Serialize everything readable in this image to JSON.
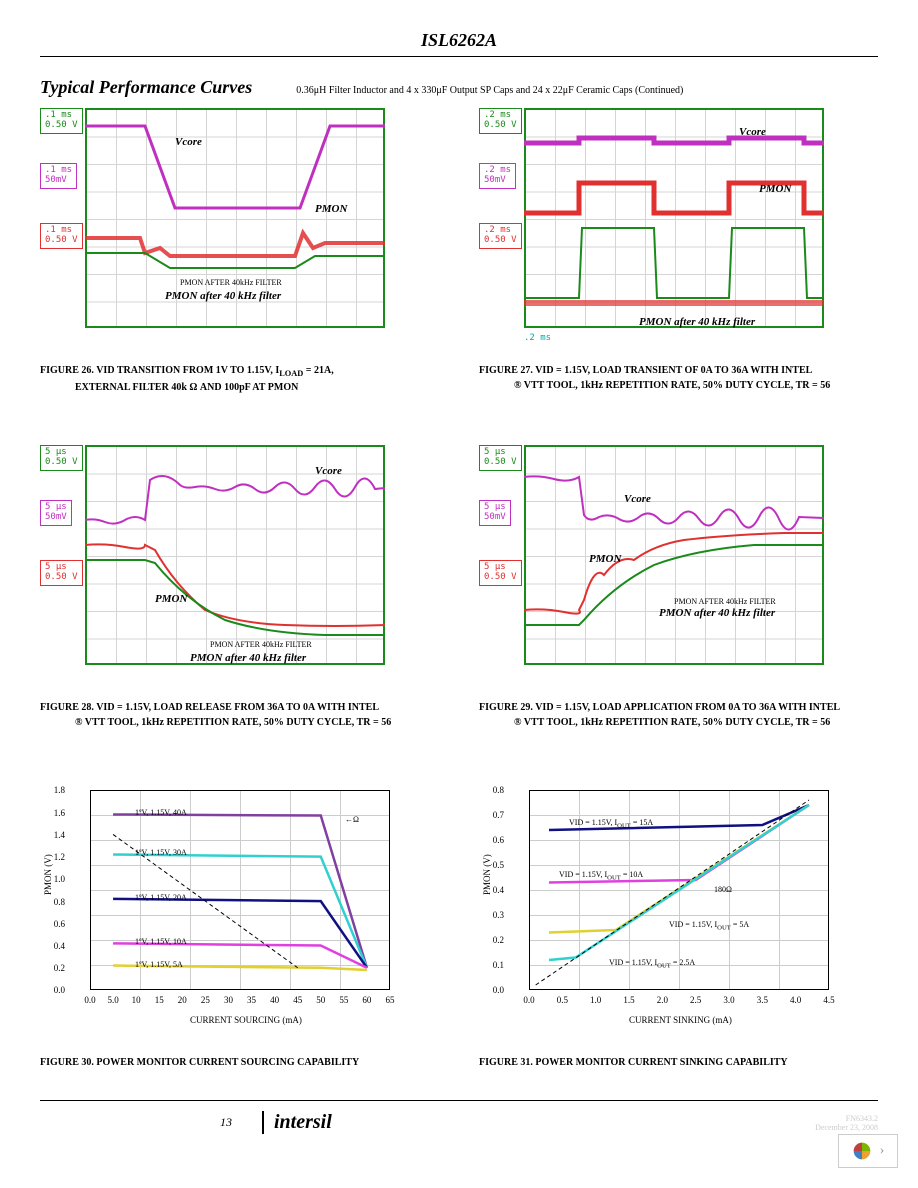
{
  "page_title": "ISL6262A",
  "section_title": "Typical Performance Curves",
  "section_subtitle": "0.36μH Filter Inductor and 4 x 330μF Output SP Caps and 24 x 22μF Ceramic Caps (Continued)",
  "page_number": "13",
  "footer_logo": "intersil",
  "footer_doc": "FN6343.2",
  "footer_date": "December 23, 2008",
  "scope_channels": {
    "ch3": {
      "color": "#1a8a1a",
      "label_color": "#1a8a1a"
    },
    "ch4": {
      "color": "#c030c0",
      "label_color": "#c030c0"
    },
    "ch1": {
      "color": "#e03030",
      "label_color": "#e03030"
    },
    "timebase_color": "#00aaaa"
  },
  "fig26": {
    "ch3": {
      "timebase": ".1 ms",
      "scale": "0.50 V"
    },
    "ch4": {
      "timebase": ".1 ms",
      "scale": "50mV"
    },
    "ch1": {
      "timebase": ".1 ms",
      "scale": "0.50 V"
    },
    "annotations": {
      "vcore": "Vcore",
      "pmon": "PMON",
      "pmon_raw": "PMON AFTER 40kHz FILTER",
      "pmon_filt": "PMON after 40 kHz filter"
    },
    "caption": "FIGURE 26. VID TRANSITION FROM 1V TO 1.15V, I",
    "caption2": "LOAD",
    "caption3": "= 21A,",
    "caption4": "EXTERNAL FILTER 40k",
    "caption5": "Ω AND 100pF AT PMON"
  },
  "fig27": {
    "ch3": {
      "timebase": ".2 ms",
      "scale": "0.50 V"
    },
    "ch4": {
      "timebase": ".2 ms",
      "scale": "50mV"
    },
    "ch1": {
      "timebase": ".2 ms",
      "scale": "0.50 V"
    },
    "timebase": ".2 ms",
    "annotations": {
      "vcore": "Vcore",
      "pmon": "PMON",
      "pmon_filt": "PMON after 40 kHz filter"
    },
    "caption": "FIGURE 27. VID = 1.15V, LOAD TRANSIENT OF 0A TO 36A WITH INTEL",
    "caption2": "® VTT TOOL, 1kHz REPETITION RATE, 50% DUTY CYCLE, TR = 56"
  },
  "fig28": {
    "ch3": {
      "timebase": "5 μs",
      "scale": "0.50 V"
    },
    "ch4": {
      "timebase": "5 μs",
      "scale": "50mV"
    },
    "ch1": {
      "timebase": "5 μs",
      "scale": "0.50 V"
    },
    "annotations": {
      "vcore": "Vcore",
      "pmon": "PMON",
      "pmon_raw": "PMON AFTER 40kHz FILTER",
      "pmon_filt": "PMON after 40 kHz filter"
    },
    "caption": "FIGURE 28. VID = 1.15V, LOAD RELEASE FROM 36A TO 0A WITH INTEL",
    "caption2": "® VTT TOOL, 1kHz REPETITION RATE, 50% DUTY CYCLE, TR = 56"
  },
  "fig29": {
    "ch3": {
      "timebase": "5 μs",
      "scale": "0.50 V"
    },
    "ch4": {
      "timebase": "5 μs",
      "scale": "50mV"
    },
    "ch1": {
      "timebase": "5 μs",
      "scale": "0.50 V"
    },
    "annotations": {
      "vcore": "Vcore",
      "pmon": "PMON",
      "pmon_raw": "PMON AFTER 40kHz FILTER",
      "pmon_filt": "PMON after 40 kHz filter"
    },
    "caption": "FIGURE 29. VID = 1.15V, LOAD APPLICATION FROM 0A TO 36A WITH INTEL",
    "caption2": "® VTT TOOL, 1kHz REPETITION RATE, 50% DUTY CYCLE, TR = 56"
  },
  "fig30": {
    "type": "line_chart",
    "ylabel": "PMON (V)",
    "xlabel": "CURRENT SOURCING (mA)",
    "ylim": [
      0.0,
      1.8
    ],
    "ytick_step": 0.2,
    "yticks": [
      "0.0",
      "0.2",
      "0.4",
      "0.6",
      "0.8",
      "1.0",
      "1.2",
      "1.4",
      "1.6",
      "1.8"
    ],
    "xlim": [
      0,
      65
    ],
    "xtick_step": 5,
    "xticks": [
      "0.0",
      "5.0",
      "10",
      "15",
      "20",
      "25",
      "30",
      "35",
      "40",
      "45",
      "50",
      "55",
      "60",
      "65"
    ],
    "series": [
      {
        "label": "1ºV, 1.15V, 40A",
        "color": "#8040a0",
        "data": [
          [
            5,
            1.58
          ],
          [
            50,
            1.57
          ],
          [
            60,
            0.2
          ]
        ]
      },
      {
        "label": "1ºV, 1.15V, 30A",
        "color": "#30d0d0",
        "data": [
          [
            5,
            1.22
          ],
          [
            50,
            1.2
          ],
          [
            60,
            0.2
          ]
        ]
      },
      {
        "label": "1ºV, 1.15V, 20A",
        "color": "#101080",
        "data": [
          [
            5,
            0.82
          ],
          [
            50,
            0.8
          ],
          [
            60,
            0.2
          ]
        ]
      },
      {
        "label": "1ºV, 1.15V, 10A",
        "color": "#e040e0",
        "data": [
          [
            5,
            0.42
          ],
          [
            50,
            0.4
          ],
          [
            60,
            0.2
          ]
        ]
      },
      {
        "label": "1ºV, 1.15V, 5A",
        "color": "#e0d030",
        "data": [
          [
            5,
            0.22
          ],
          [
            50,
            0.2
          ],
          [
            60,
            0.18
          ]
        ]
      }
    ],
    "ref_line": {
      "label": "←Ω",
      "color": "#000",
      "dashed": true,
      "data": [
        [
          5,
          1.4
        ],
        [
          45,
          0.2
        ]
      ]
    },
    "caption": "FIGURE 30. POWER MONITOR CURRENT SOURCING CAPABILITY"
  },
  "fig31": {
    "type": "line_chart",
    "ylabel": "PMON (V)",
    "xlabel": "CURRENT SINKING (mA)",
    "ylim": [
      0.0,
      0.8
    ],
    "ytick_step": 0.1,
    "yticks": [
      "0.0",
      "0.1",
      "0.2",
      "0.3",
      "0.4",
      "0.5",
      "0.6",
      "0.7",
      "0.8"
    ],
    "xlim": [
      0,
      4.5
    ],
    "xtick_step": 0.5,
    "xticks": [
      "0.0",
      "0.5",
      "1.0",
      "1.5",
      "2.0",
      "2.5",
      "3.0",
      "3.5",
      "4.0",
      "4.5"
    ],
    "series": [
      {
        "label": "VID = 1.15V, I",
        "label2": "OUT",
        "label3": "= 15A",
        "color": "#101080",
        "data": [
          [
            0.3,
            0.64
          ],
          [
            3.5,
            0.66
          ],
          [
            4.2,
            0.74
          ]
        ]
      },
      {
        "label": "VID = 1.15V, I",
        "label2": "OUT",
        "label3": "= 10A",
        "color": "#e040e0",
        "data": [
          [
            0.3,
            0.43
          ],
          [
            2.5,
            0.44
          ],
          [
            4.2,
            0.74
          ]
        ]
      },
      {
        "label": "VID = 1.15V, I",
        "label2": "OUT",
        "label3": "= 5A",
        "color": "#e0d030",
        "data": [
          [
            0.3,
            0.23
          ],
          [
            1.3,
            0.24
          ],
          [
            4.2,
            0.74
          ]
        ]
      },
      {
        "label": "VID = 1.15V, I",
        "label2": "OUT",
        "label3": "= 2.5A",
        "color": "#30d0d0",
        "data": [
          [
            0.3,
            0.12
          ],
          [
            0.7,
            0.13
          ],
          [
            4.2,
            0.74
          ]
        ]
      }
    ],
    "ref_line": {
      "label": "180Ω",
      "color": "#000",
      "dashed": true,
      "data": [
        [
          0.1,
          0.02
        ],
        [
          4.2,
          0.76
        ]
      ]
    },
    "caption": "FIGURE 31. POWER MONITOR CURRENT SINKING CAPABILITY"
  }
}
